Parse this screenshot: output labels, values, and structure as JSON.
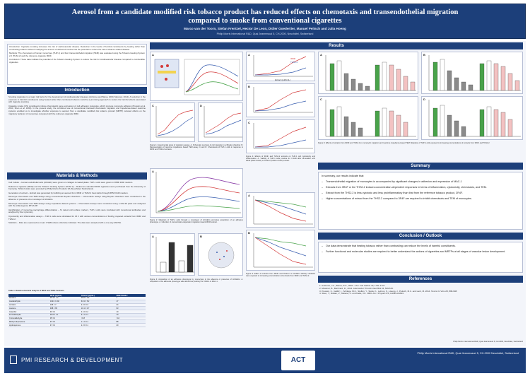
{
  "header": {
    "title_line1": "Aerosol from a candidate modified risk tobacco product has reduced effects on chemotaxis and transendothelial migration",
    "title_line2": "compared to smoke from conventional cigarettes",
    "authors": "Marco van der Toorn, Stefan Frentzel, Hector De Leon, Didier Goedertier, Manuel Peitsch and Julia Hoeng",
    "affiliation": "Philip Morris International R&D, Quai Jeanrenaud 5, CH-2000, Neuchâtel, Switzerland"
  },
  "sections": {
    "introduction": "Introduction",
    "materials": "Materials & Methods",
    "results": "Results",
    "summary": "Summary",
    "conclusion": "Conclusion / Outlook",
    "references": "References"
  },
  "abstract": {
    "text": "Introduction: Cigarette smoking increases the risk of cardiovascular disease. Reduction in the levels of harmful constituents by heating rather than combusting tobacco without modifying the amount of delivered nicotine has the potential to reduce the risk of tobacco related disease.",
    "methods": "Methods: The chemotaxis of human monocytes (THP-1) and their transendothelial migration (TEM) was evaluated using the Tobacco Heating System 2.2 (THS2.2) and the reference cigarette 3R4F.",
    "conclusion": "Conclusion: These data indicate the potential of the Tobacco Heating System to reduce the risk for cardiovascular disease compared to combustible cigarettes."
  },
  "introduction_text": [
    "Smoking cigarettes is a major risk factor for the development of cardiovascular diseases (Ambrose and Barua, 2004; Messner, 2014). A reduction in the exposure to harmful constituents using heated rather than combusted tobacco could be a promising approach to reduce the harmful effects associated with cigarette smoking.",
    "Cigarette smoke (CS) constituents induce chemotactic gene expression of cell adhesion molecules, which promote monocyte adhesion (Poussin et al. 2014; Shen et al. 1996). In the present study, the combined use of conventional transwell chemotaxis migration and impedance-based real-time systems enabled us to investigate whether exposure to aerosol from a candidate modified risk tobacco product (MRTP) reduced effects on the migratory behavior of monocytes compared with the reference cigarette 3R4F."
  ],
  "methods_text": [
    "Cell Culture – Human endothelial cells (HCAEC) were grown on collagen A coated plates. THP-1 cells were grown in RPMI 1640 medium.",
    "Reference cigarette (3R4F) and the Tobacco Heating System (THS2.2) – Reference standard 3R4F cigarettes were purchased from the University of Kentucky. THS2.2 sticks were provided by Philip Morris Products SA (Neuchâtel, Switzerland).",
    "Generation of extract – Extract was generated by bubbling an aerosol from 3R4F or THS2.2 heat sticks through RPMI 1640 medium.",
    "Monocyte chemotaxis and TEM assays using conventional Boyden chambers – Chemotaxis assays using Boyden chambers were conducted in the absence or presence of a monolayer of HCAECs.",
    "Monocyte chemotaxis and TEM assays using impedance-based systems – Chemotaxis assays were conducted using a CIM-16 plate and analyzed with the xCELLigence RTCA DP.",
    "Identification of monocyte-macrophage differentiation – To detect cell surface markers, THP-1 cells were incubated with monoclonal antibodies and analyzed by flow cytometry.",
    "Cytotoxicity and inflammation assays – THP-1 cells were stimulated for 16 h with various concentrations of freshly prepared extracts from 3R4F and THS2.2.",
    "Statistics – Data are expressed as mean ± SEM unless otherwise indicated. The data were analyzed with a one-way ANOVA."
  ],
  "table": {
    "caption": "Table 1: Relative chemical analysis of 3R4F and THS2.2 extracts",
    "headers": [
      "",
      "3R4F (µg/mL)",
      "THS2.2 (µg/mL)",
      "3R4F/THS2.2"
    ],
    "rows": [
      [
        "Nicotine",
        "35.3 ± 1.4",
        "28.8 ± 0.9",
        "1"
      ],
      [
        "Acetaldehyde",
        "1021 ± 102",
        "61.9 ± 5.2",
        "17"
      ],
      [
        "Acrolein",
        "105 ± 7",
        "4.3 ± 0.3",
        "24"
      ],
      [
        "Acetone",
        "938 ± 65",
        "10.1 ± 0.7",
        "93"
      ],
      [
        "Catechol",
        "46 ± 4",
        "4.4 ± 0.2",
        "10"
      ],
      [
        "Formaldehyde",
        "29.6 ± 1.1",
        "3.1 ± 0.1",
        "10"
      ],
      [
        "Crotonaldehyde",
        "35 ± 2",
        "<0.8",
        ">44"
      ],
      [
        "Methyl ethyl ketone",
        "97 ± 6",
        "1.1 ± 0.1",
        "88"
      ],
      [
        "Hydroquinone",
        "47 ± 4",
        "2.3 ± 0.1",
        "20"
      ]
    ]
  },
  "results": {
    "fig1_caption": "Figure 1: Experimental setup of migration assays. A. Schematic overview of cell migration in a Boyden chamber. B. Representation of real-time impedance based TEM assay. C and D: Chemotaxis of THP-1 cells in response to 3R4F and THS2.2 extracts.",
    "fig2_caption": "Figure 2: Migration of THP-1 cells through a monolayer of HCAECs promotes acquisition of an adhesive phenotype. A. Induction of concentration-dependent migration toward 3R4F extract.",
    "fig3_caption": "Figure 3: Acquisition of an adhesive phenotype by monocytes in the absence or presence of HCAECs. A. Acquisition of an adhesive phenotype was defined as positivity for CD11b or MAC-1.",
    "fig4_caption": "Figure 4: Effects of 3R4F and THS2.2 extracts on THP-1 cell cytotoxicity and inflammation. A. Viability of THP-1 cells positive for 7-AAD after stimulation with 3R4F (filled circles) or THS2.2 (hollow circles) extract.",
    "fig5_caption": "Figure 5: Effect of extracts from 3R4F and THS2.2 on HCAEC viability. HCAECs were exposed to increasing concentrations of extracts from 3R4F and THS2.2.",
    "fig6_caption": "Figure 6: Effects of extracts from 3R4F and THS2.2 on monocytic migration and real-time impedance-based TEM. Migration of THP-1 cells exposed to increasing concentrations of extracts from 3R4F and THS2.2.",
    "legend_3r4f": "3R4F",
    "legend_ths": "THS2.2",
    "xlabel_extract": "Extract (puffs/mL)",
    "xlabel_time": "Time (h)",
    "ylabel_cells": "Cells (%)",
    "ylabel_ci": "Cell Index",
    "ylabel_il8": "IL-8 (pg/mL)",
    "ylabel_tnf": "TNF-α (pg/mL)"
  },
  "summary": {
    "intro": "In summary, our results indicate that:",
    "points": [
      "Transendothelial migration of monocytes is accompanied by significant changes in adhesion and expression of MAC-1",
      "Extracts from 3R4F or the THS2.2 induces concentration-dependent responses in terms of inflammation, cytotoxicity, chemotaxis, and TEM.",
      "Extract from the THS2.2 is less cytotoxic and less proinflammatory than that from the reference tobacco product, 3R4F.",
      "Higher concentrations of extract from the THS2.2 compared to 3R4F are required to inhibit chemotaxis and TEM of monocytes."
    ]
  },
  "conclusion": {
    "points": [
      "Our data demonstrate that heating tobacco rather than combusting can reduce the levels of harmful constituents.",
      "Further functional and molecular studies are required to better understand the actions of cigarettes and MRTPs at all stages of vascular lesion development."
    ]
  },
  "references": {
    "items": [
      "1. Ambrose, J.A., Barua, R.S., 2004. J Am Coll Cardiol 43, 1731-1737.",
      "2. Messner, B., Bernhard, D., 2014. Arterioscler Thromb Vasc Biol 34, 509-515.",
      "3. Poussin, C., Gallitz, I., Schlage, W.K., Steffen, Y., Stolle, K., Lebrun, S., Hoeng, J., Peitsch, M.C. and Lietz, M. 2014. Toxicol In Vitro 28, 898-908.",
      "4. Shen, Y., Rattan, V., Sultana, C. and Kalra, V.K. 1996. Am J Physiol 270, H1624-H1633."
    ],
    "footnote": "Philip Morris International R&D, Quai Jeanrenaud 5, CH-2000, Neuchâtel, Switzerland"
  },
  "footer": {
    "brand": "PMI RESEARCH & DEVELOPMENT",
    "logo": "ACT",
    "address": "Philip Morris International R&D, Quai Jeanrenaud 5, CH-2000 Neuchâtel, Switzerland"
  },
  "colors": {
    "navy": "#1c3f7a",
    "series_3r4f": "#d33a3a",
    "series_ths": "#3a5fb0",
    "bar_green": "#49a34a",
    "bar_white": "#ffffff",
    "bar_grey": "#8a8a8a"
  }
}
